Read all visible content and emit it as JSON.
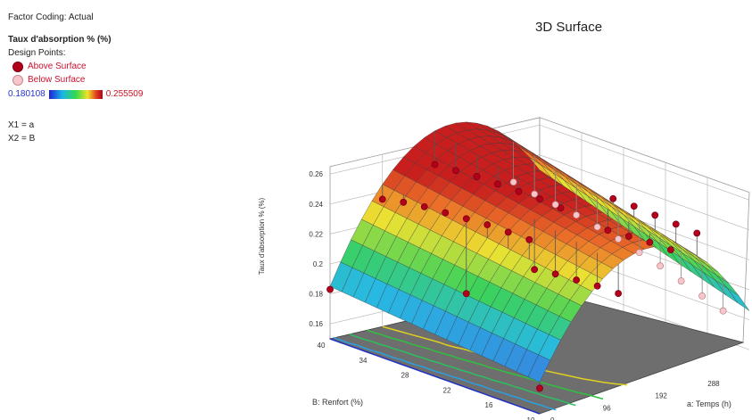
{
  "legend": {
    "factor_coding": "Factor Coding: Actual",
    "response": "Taux d'absorption % (%)",
    "design_points": "Design Points:",
    "above": "Above Surface",
    "below": "Below Surface",
    "range_min": "0.180108",
    "range_max": "0.255509",
    "x1": "X1 = a",
    "x2": "X2 = B"
  },
  "colors": {
    "above_point": "#b3001b",
    "below_point": "#f6c6cb",
    "floor": "#6e6e6e"
  },
  "chart_data": {
    "type": "surface3d",
    "title": "3D Surface",
    "zlabel": "Taux d'absorption % (%)",
    "xlabel": "a: Temps (h)",
    "ylabel": "B: Renfort (%)",
    "zticks": [
      "0.16",
      "0.18",
      "0.2",
      "0.22",
      "0.24",
      "0.26"
    ],
    "xticks": [
      "0",
      "96",
      "192",
      "288"
    ],
    "yticks": [
      "10",
      "16",
      "22",
      "28",
      "34",
      "40"
    ],
    "zlim": [
      0.15,
      0.26
    ],
    "xlim": [
      0,
      384
    ],
    "ylim": [
      10,
      40
    ],
    "above_points": [
      {
        "x": 0,
        "y": 40,
        "z": 0.183
      },
      {
        "x": 0,
        "y": 10,
        "z": 0.167
      },
      {
        "x": 96,
        "y": 28,
        "z": 0.192
      },
      {
        "x": 96,
        "y": 40,
        "z": 0.235
      },
      {
        "x": 96,
        "y": 37,
        "z": 0.238
      },
      {
        "x": 96,
        "y": 34,
        "z": 0.24
      },
      {
        "x": 96,
        "y": 31,
        "z": 0.241
      },
      {
        "x": 96,
        "y": 28,
        "z": 0.242
      },
      {
        "x": 96,
        "y": 25,
        "z": 0.243
      },
      {
        "x": 96,
        "y": 22,
        "z": 0.243
      },
      {
        "x": 96,
        "y": 19,
        "z": 0.243
      },
      {
        "x": 144,
        "y": 22,
        "z": 0.214
      },
      {
        "x": 144,
        "y": 19,
        "z": 0.216
      },
      {
        "x": 144,
        "y": 16,
        "z": 0.217
      },
      {
        "x": 144,
        "y": 13,
        "z": 0.218
      },
      {
        "x": 144,
        "y": 10,
        "z": 0.218
      },
      {
        "x": 192,
        "y": 40,
        "z": 0.25
      },
      {
        "x": 192,
        "y": 37,
        "z": 0.251
      },
      {
        "x": 192,
        "y": 34,
        "z": 0.252
      },
      {
        "x": 192,
        "y": 31,
        "z": 0.252
      },
      {
        "x": 192,
        "y": 28,
        "z": 0.252
      },
      {
        "x": 192,
        "y": 25,
        "z": 0.252
      },
      {
        "x": 192,
        "y": 22,
        "z": 0.251
      },
      {
        "x": 240,
        "y": 19,
        "z": 0.237
      },
      {
        "x": 240,
        "y": 16,
        "z": 0.238
      },
      {
        "x": 240,
        "y": 13,
        "z": 0.239
      },
      {
        "x": 240,
        "y": 10,
        "z": 0.239
      },
      {
        "x": 288,
        "y": 22,
        "z": 0.249
      },
      {
        "x": 288,
        "y": 19,
        "z": 0.249
      },
      {
        "x": 288,
        "y": 16,
        "z": 0.248
      },
      {
        "x": 288,
        "y": 13,
        "z": 0.247
      },
      {
        "x": 288,
        "y": 10,
        "z": 0.246
      }
    ],
    "below_points": [
      {
        "x": 336,
        "y": 40,
        "z": 0.226
      },
      {
        "x": 336,
        "y": 37,
        "z": 0.223
      },
      {
        "x": 336,
        "y": 34,
        "z": 0.221
      },
      {
        "x": 336,
        "y": 31,
        "z": 0.219
      },
      {
        "x": 336,
        "y": 28,
        "z": 0.216
      },
      {
        "x": 336,
        "y": 25,
        "z": 0.213
      },
      {
        "x": 336,
        "y": 22,
        "z": 0.209
      },
      {
        "x": 336,
        "y": 19,
        "z": 0.205
      },
      {
        "x": 336,
        "y": 16,
        "z": 0.2
      },
      {
        "x": 336,
        "y": 13,
        "z": 0.195
      },
      {
        "x": 336,
        "y": 10,
        "z": 0.19
      }
    ]
  }
}
